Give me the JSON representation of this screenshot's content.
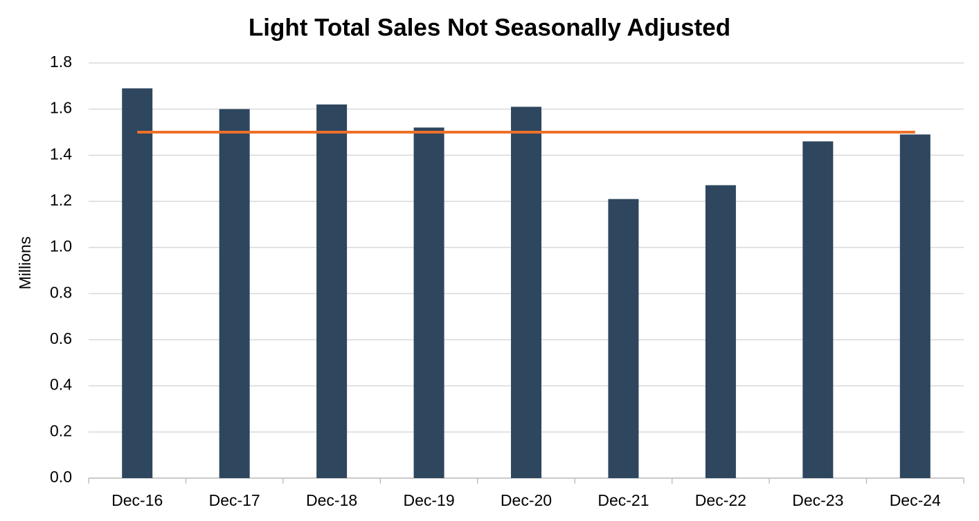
{
  "chart_data": {
    "type": "bar",
    "title": "Light Total Sales Not Seasonally Adjusted",
    "y_label": "Millions",
    "categories": [
      "Dec-16",
      "Dec-17",
      "Dec-18",
      "Dec-19",
      "Dec-20",
      "Dec-21",
      "Dec-22",
      "Dec-23",
      "Dec-24"
    ],
    "series": [
      {
        "type": "bar",
        "color": "#2e465e",
        "values": [
          1.69,
          1.6,
          1.62,
          1.52,
          1.61,
          1.21,
          1.27,
          1.46,
          1.49
        ]
      },
      {
        "type": "line",
        "color": "#ed7028",
        "values": [
          1.5,
          1.5,
          1.5,
          1.5,
          1.5,
          1.5,
          1.5,
          1.5,
          1.5
        ]
      }
    ],
    "ylim": [
      0,
      1.8
    ],
    "yticks": [
      {
        "value": 0,
        "label": "0.0"
      },
      0.2,
      0.4,
      0.6,
      0.8,
      {
        "value": 1,
        "label": "1.0"
      },
      1.2,
      1.4,
      1.6,
      1.8
    ],
    "grid": true
  }
}
